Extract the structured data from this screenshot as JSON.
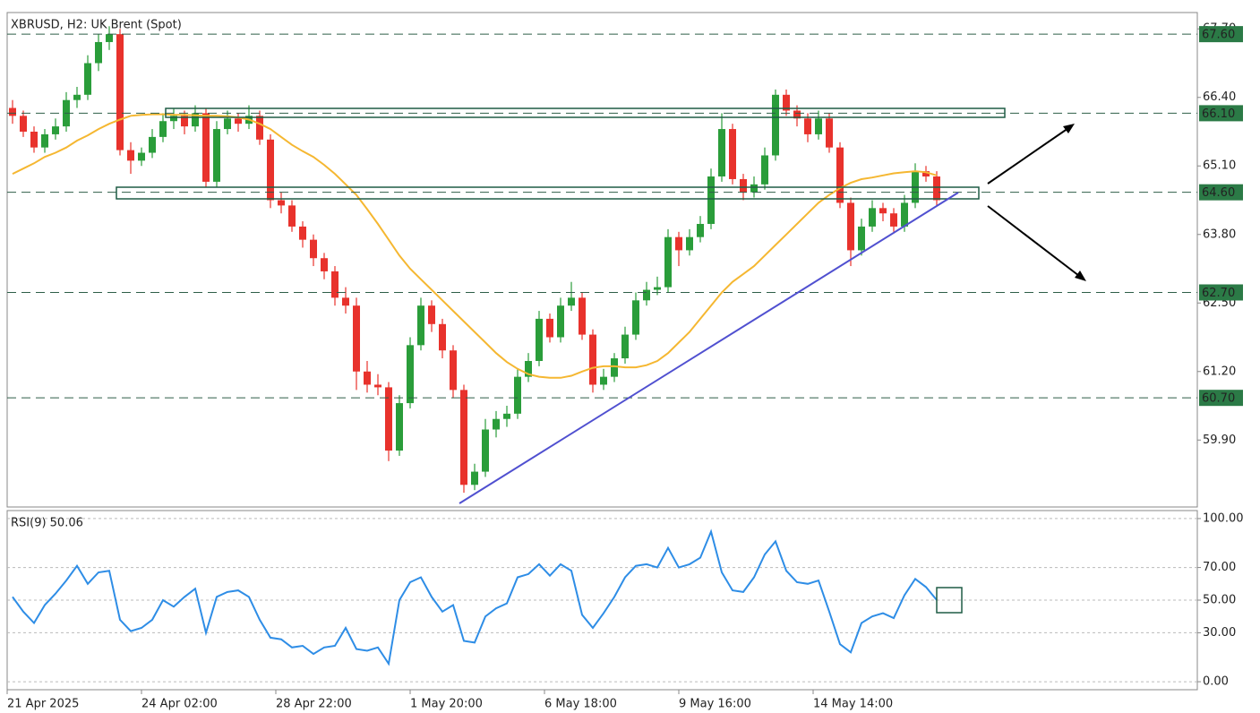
{
  "chart_data": [
    {
      "type": "candlestick",
      "title": "XBRUSD, H2:  UK Brent (Spot)",
      "up_color": "#2a9d3a",
      "down_color": "#e8322c",
      "candles": [
        [
          66.2,
          66.35,
          65.9,
          66.05
        ],
        [
          66.05,
          66.15,
          65.65,
          65.75
        ],
        [
          65.75,
          65.85,
          65.35,
          65.45
        ],
        [
          65.45,
          65.8,
          65.35,
          65.7
        ],
        [
          65.7,
          66.0,
          65.6,
          65.85
        ],
        [
          65.85,
          66.5,
          65.75,
          66.35
        ],
        [
          66.35,
          66.6,
          66.2,
          66.45
        ],
        [
          66.45,
          67.2,
          66.35,
          67.05
        ],
        [
          67.05,
          67.6,
          66.9,
          67.45
        ],
        [
          67.45,
          67.75,
          67.3,
          67.6
        ],
        [
          67.6,
          67.7,
          65.3,
          65.4
        ],
        [
          65.4,
          65.55,
          64.95,
          65.2
        ],
        [
          65.2,
          65.45,
          65.1,
          65.35
        ],
        [
          65.35,
          65.8,
          65.25,
          65.65
        ],
        [
          65.65,
          66.1,
          65.55,
          65.95
        ],
        [
          65.95,
          66.2,
          65.8,
          66.05
        ],
        [
          66.05,
          66.15,
          65.7,
          65.85
        ],
        [
          65.85,
          66.25,
          65.75,
          66.1
        ],
        [
          66.1,
          66.2,
          64.7,
          64.8
        ],
        [
          64.8,
          65.95,
          64.7,
          65.8
        ],
        [
          65.8,
          66.15,
          65.7,
          66.0
        ],
        [
          66.0,
          66.1,
          65.75,
          65.9
        ],
        [
          65.9,
          66.25,
          65.8,
          66.05
        ],
        [
          66.05,
          66.15,
          65.5,
          65.6
        ],
        [
          65.6,
          65.7,
          64.3,
          64.45
        ],
        [
          64.45,
          64.6,
          64.2,
          64.35
        ],
        [
          64.35,
          64.45,
          63.85,
          63.95
        ],
        [
          63.95,
          64.05,
          63.55,
          63.7
        ],
        [
          63.7,
          63.8,
          63.2,
          63.35
        ],
        [
          63.35,
          63.45,
          62.95,
          63.1
        ],
        [
          63.1,
          63.2,
          62.45,
          62.6
        ],
        [
          62.6,
          62.8,
          62.3,
          62.45
        ],
        [
          62.45,
          62.6,
          60.85,
          61.2
        ],
        [
          61.2,
          61.4,
          60.8,
          60.95
        ],
        [
          60.95,
          61.15,
          60.75,
          60.9
        ],
        [
          60.9,
          61.0,
          59.5,
          59.7
        ],
        [
          59.7,
          60.75,
          59.6,
          60.6
        ],
        [
          60.6,
          61.85,
          60.5,
          61.7
        ],
        [
          61.7,
          62.6,
          61.6,
          62.45
        ],
        [
          62.45,
          62.55,
          61.95,
          62.1
        ],
        [
          62.1,
          62.2,
          61.45,
          61.6
        ],
        [
          61.6,
          61.7,
          60.7,
          60.85
        ],
        [
          60.85,
          60.95,
          58.9,
          59.05
        ],
        [
          59.05,
          59.45,
          58.95,
          59.3
        ],
        [
          59.3,
          60.3,
          59.2,
          60.1
        ],
        [
          60.1,
          60.45,
          59.95,
          60.3
        ],
        [
          60.3,
          60.55,
          60.15,
          60.4
        ],
        [
          60.4,
          61.25,
          60.3,
          61.1
        ],
        [
          61.1,
          61.55,
          61.0,
          61.4
        ],
        [
          61.4,
          62.35,
          61.3,
          62.2
        ],
        [
          62.2,
          62.3,
          61.75,
          61.85
        ],
        [
          61.85,
          62.6,
          61.75,
          62.45
        ],
        [
          62.45,
          62.9,
          62.35,
          62.6
        ],
        [
          62.6,
          62.7,
          61.8,
          61.9
        ],
        [
          61.9,
          62.0,
          60.8,
          60.95
        ],
        [
          60.95,
          61.25,
          60.85,
          61.1
        ],
        [
          61.1,
          61.55,
          61.0,
          61.45
        ],
        [
          61.45,
          62.05,
          61.35,
          61.9
        ],
        [
          61.9,
          62.7,
          61.8,
          62.55
        ],
        [
          62.55,
          62.9,
          62.45,
          62.75
        ],
        [
          62.75,
          63.0,
          62.65,
          62.8
        ],
        [
          62.8,
          63.9,
          62.7,
          63.75
        ],
        [
          63.75,
          63.85,
          63.2,
          63.5
        ],
        [
          63.5,
          63.9,
          63.4,
          63.75
        ],
        [
          63.75,
          64.15,
          63.65,
          64.0
        ],
        [
          64.0,
          65.05,
          63.9,
          64.9
        ],
        [
          64.9,
          66.1,
          64.8,
          65.8
        ],
        [
          65.8,
          65.9,
          64.75,
          64.85
        ],
        [
          64.85,
          64.95,
          64.45,
          64.6
        ],
        [
          64.6,
          64.9,
          64.5,
          64.75
        ],
        [
          64.75,
          65.45,
          64.65,
          65.3
        ],
        [
          65.3,
          66.55,
          65.2,
          66.45
        ],
        [
          66.45,
          66.55,
          66.05,
          66.15
        ],
        [
          66.15,
          66.25,
          65.85,
          66.0
        ],
        [
          66.0,
          66.1,
          65.55,
          65.7
        ],
        [
          65.7,
          66.15,
          65.6,
          66.0
        ],
        [
          66.0,
          66.1,
          65.35,
          65.45
        ],
        [
          65.45,
          65.55,
          64.3,
          64.4
        ],
        [
          64.4,
          64.5,
          63.2,
          63.5
        ],
        [
          63.5,
          64.1,
          63.4,
          63.95
        ],
        [
          63.95,
          64.45,
          63.85,
          64.3
        ],
        [
          64.3,
          64.4,
          64.05,
          64.2
        ],
        [
          64.2,
          64.3,
          63.85,
          63.95
        ],
        [
          63.95,
          64.55,
          63.85,
          64.4
        ],
        [
          64.4,
          65.15,
          64.3,
          65.0
        ],
        [
          65.0,
          65.1,
          64.8,
          64.9
        ],
        [
          64.9,
          65.0,
          64.35,
          64.45
        ]
      ],
      "ma": {
        "color": "#f5b731",
        "values": [
          64.95,
          65.05,
          65.15,
          65.27,
          65.35,
          65.45,
          65.58,
          65.68,
          65.8,
          65.9,
          65.98,
          66.05,
          66.07,
          66.08,
          66.08,
          66.07,
          66.07,
          66.06,
          66.05,
          66.05,
          66.04,
          66.02,
          65.98,
          65.9,
          65.8,
          65.65,
          65.5,
          65.38,
          65.27,
          65.12,
          64.95,
          64.75,
          64.55,
          64.28,
          64.0,
          63.7,
          63.4,
          63.15,
          62.95,
          62.75,
          62.55,
          62.35,
          62.15,
          61.95,
          61.75,
          61.55,
          61.38,
          61.25,
          61.15,
          61.1,
          61.08,
          61.08,
          61.12,
          61.2,
          61.27,
          61.3,
          61.3,
          61.28,
          61.28,
          61.32,
          61.4,
          61.55,
          61.75,
          61.95,
          62.2,
          62.45,
          62.7,
          62.9,
          63.05,
          63.2,
          63.4,
          63.6,
          63.8,
          64.0,
          64.2,
          64.4,
          64.55,
          64.68,
          64.78,
          64.85,
          64.88,
          64.92,
          64.96,
          64.98,
          65.0,
          64.98,
          64.92
        ]
      },
      "ylim": [
        58.63,
        68.01
      ],
      "yticks": [
        {
          "value": 59.9,
          "label": "59.90"
        },
        {
          "value": 61.2,
          "label": "61.20"
        },
        {
          "value": 62.5,
          "label": "62.50"
        },
        {
          "value": 63.8,
          "label": "63.80"
        },
        {
          "value": 65.1,
          "label": "65.10"
        },
        {
          "value": 66.4,
          "label": "66.40"
        },
        {
          "value": 67.7,
          "label": "67.70"
        }
      ],
      "levels": [
        {
          "value": 67.6,
          "label": "67.60"
        },
        {
          "value": 66.1,
          "label": "66.10"
        },
        {
          "value": 64.6,
          "label": "64.60"
        },
        {
          "value": 62.7,
          "label": "62.70"
        },
        {
          "value": 60.7,
          "label": "60.70"
        }
      ],
      "level_color": "#2b7a46",
      "xlim": [
        0,
        110.75
      ],
      "xticks": [
        {
          "value": 0,
          "label": "21 Apr 2025"
        },
        {
          "value": 12.5,
          "label": "24 Apr 02:00"
        },
        {
          "value": 25,
          "label": "28 Apr 22:00"
        },
        {
          "value": 37.5,
          "label": "1 May 20:00"
        },
        {
          "value": 50,
          "label": "6 May 18:00"
        },
        {
          "value": 62.5,
          "label": "9 May 16:00"
        },
        {
          "value": 75,
          "label": "14 May 14:00"
        }
      ]
    },
    {
      "type": "line",
      "title": "RSI(9) 50.06",
      "color": "#2e8de6",
      "values": [
        52,
        43,
        36,
        47,
        54,
        62,
        71,
        60,
        67,
        68,
        38,
        31,
        33,
        38,
        50,
        46,
        52,
        57,
        30,
        52,
        55,
        56,
        52,
        38,
        27,
        26,
        21,
        22,
        17,
        21,
        22,
        33,
        20,
        19,
        21,
        11,
        50,
        61,
        64,
        52,
        43,
        47,
        25,
        24,
        40,
        45,
        48,
        64,
        66,
        72,
        65,
        72,
        68,
        41,
        33,
        42,
        52,
        64,
        71,
        72,
        70,
        82,
        70,
        72,
        76,
        92,
        67,
        56,
        55,
        64,
        78,
        86,
        68,
        61,
        60,
        62,
        43,
        23,
        18,
        36,
        40,
        42,
        39,
        53,
        63,
        58,
        50.06
      ],
      "ylim": [
        -4.9,
        104.9
      ],
      "yticks": [
        {
          "value": 0,
          "label": "0.00"
        },
        {
          "value": 30,
          "label": "30.00"
        },
        {
          "value": 50,
          "label": "50.00"
        },
        {
          "value": 70,
          "label": "70.00"
        },
        {
          "value": 100,
          "label": "100.00"
        }
      ],
      "grid": true
    }
  ]
}
